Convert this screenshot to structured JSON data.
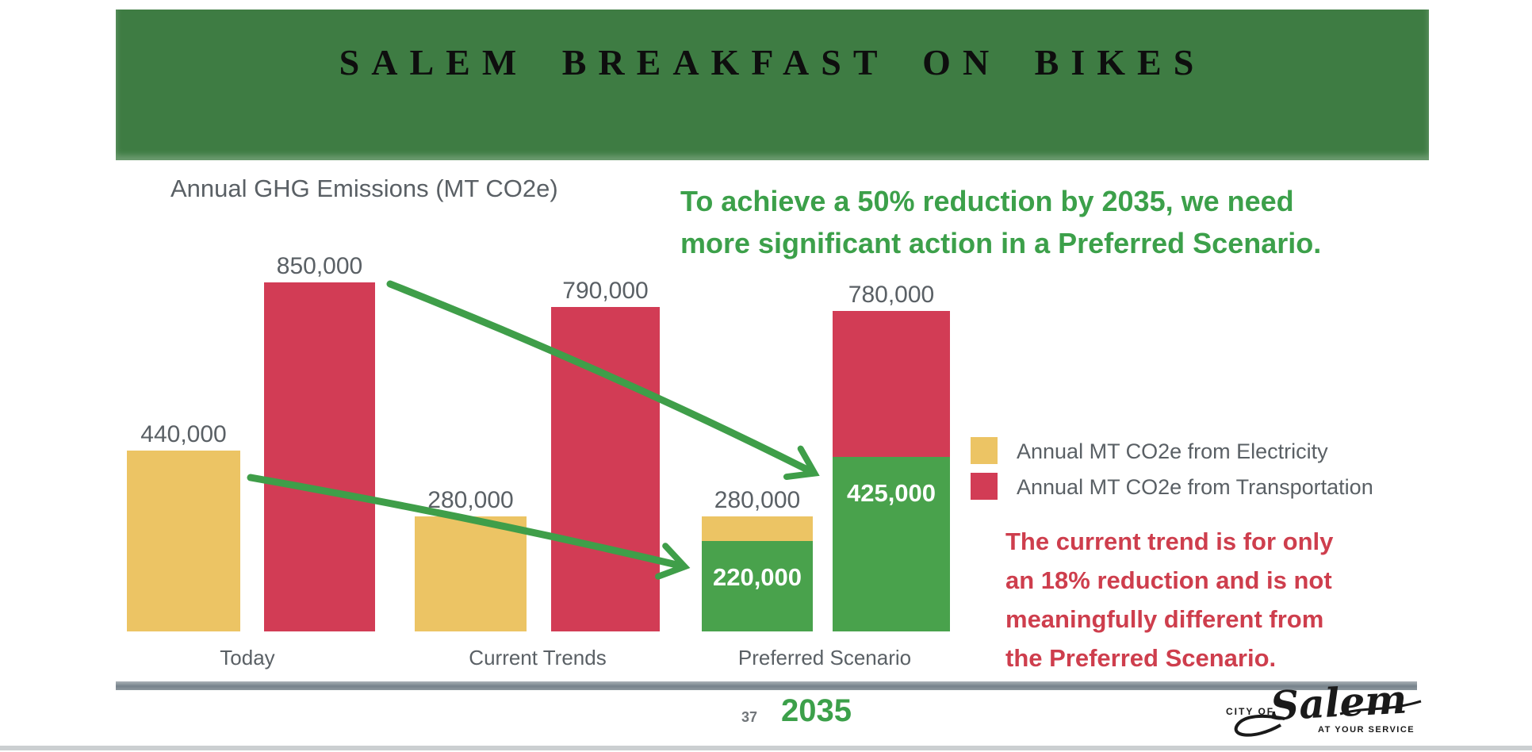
{
  "header": {
    "title": "SALEM BREAKFAST ON BIKES",
    "background_color": "#3e7c43"
  },
  "chart_data": {
    "type": "bar",
    "title": "Annual GHG Emissions (MT CO2e)",
    "ylabel": "Annual GHG Emissions (MT CO2e)",
    "ylim": [
      0,
      900000
    ],
    "grid": false,
    "legend_position": "right",
    "categories": [
      "Today",
      "Current Trends",
      "Preferred Scenario"
    ],
    "groups": [
      {
        "category": "Today",
        "bars": [
          {
            "series": "electricity",
            "value_label": "440,000",
            "segments": [
              {
                "from": 440000,
                "to": 0,
                "color_key": "electricity"
              }
            ]
          },
          {
            "series": "transportation",
            "value_label": "850,000",
            "segments": [
              {
                "from": 850000,
                "to": 0,
                "color_key": "transportation"
              }
            ]
          }
        ]
      },
      {
        "category": "Current Trends",
        "bars": [
          {
            "series": "electricity",
            "value_label": "280,000",
            "segments": [
              {
                "from": 280000,
                "to": 0,
                "color_key": "electricity"
              }
            ]
          },
          {
            "series": "transportation",
            "value_label": "790,000",
            "segments": [
              {
                "from": 790000,
                "to": 0,
                "color_key": "transportation"
              }
            ]
          }
        ]
      },
      {
        "category": "Preferred Scenario",
        "bars": [
          {
            "series": "electricity",
            "value_label": "280,000",
            "segments": [
              {
                "from": 280000,
                "to": 220000,
                "color_key": "electricity"
              },
              {
                "from": 220000,
                "to": 0,
                "color_key": "preferred",
                "inner_label": "220,000"
              }
            ]
          },
          {
            "series": "transportation",
            "value_label": "780,000",
            "segments": [
              {
                "from": 780000,
                "to": 425000,
                "color_key": "transportation"
              },
              {
                "from": 425000,
                "to": 0,
                "color_key": "preferred",
                "inner_label": "425,000"
              }
            ]
          }
        ]
      }
    ],
    "legend": [
      {
        "label": "Annual MT CO2e from Electricity",
        "color_key": "electricity"
      },
      {
        "label": "Annual MT CO2e from Transportation",
        "color_key": "transportation"
      }
    ]
  },
  "annotations": {
    "green_note_lines": [
      "To achieve a 50% reduction by 2035, we need",
      "more significant action in a Preferred Scenario."
    ],
    "red_note_lines": [
      "The current trend is for only",
      "an 18% reduction and is not",
      "meaningfully different from",
      "the Preferred Scenario."
    ]
  },
  "footer": {
    "page_number": "37",
    "year_label": "2035",
    "logo": {
      "prefix": "CITY OF",
      "name": "Salem",
      "tagline": "AT YOUR SERVICE"
    }
  },
  "colors": {
    "electricity": "#ecc464",
    "transportation": "#d23c55",
    "preferred": "#49a24c",
    "arrow": "#3f9e49",
    "green_text": "#3ca04a",
    "red_text": "#ce3e4d",
    "header_green": "#3e7c43",
    "label_gray": "#5a6065",
    "divider_gray": "#7d8891"
  }
}
